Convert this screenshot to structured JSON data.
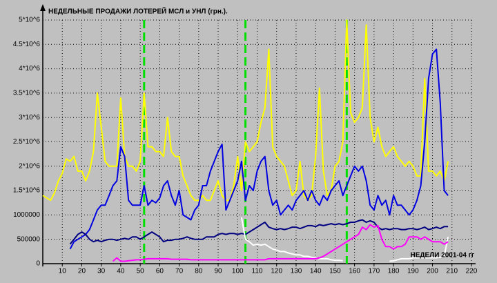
{
  "chart_data": {
    "type": "line",
    "title": "НЕДЕЛЬНЫЕ ПРОДАЖИ ЛОТЕРЕЙ МСЛ и УНЛ (грн.).",
    "xlabel": "НЕДЕЛИ 2001-04 гг",
    "x": [
      0,
      2,
      4,
      6,
      8,
      10,
      12,
      14,
      16,
      18,
      20,
      22,
      24,
      26,
      28,
      30,
      32,
      34,
      36,
      38,
      40,
      42,
      44,
      46,
      48,
      50,
      52,
      54,
      56,
      58,
      60,
      62,
      64,
      66,
      68,
      70,
      72,
      74,
      76,
      78,
      80,
      82,
      84,
      86,
      88,
      90,
      92,
      94,
      96,
      98,
      100,
      102,
      104,
      106,
      108,
      110,
      112,
      114,
      116,
      118,
      120,
      122,
      124,
      126,
      128,
      130,
      132,
      134,
      136,
      138,
      140,
      142,
      144,
      146,
      148,
      150,
      152,
      154,
      156,
      158,
      160,
      162,
      164,
      166,
      168,
      170,
      172,
      174,
      176,
      178,
      180,
      182,
      184,
      186,
      188,
      190,
      192,
      194,
      196,
      198,
      200,
      202,
      204,
      206,
      208
    ],
    "series": [
      {
        "color": "#ffff00",
        "values": [
          1400000,
          1350000,
          1300000,
          1450000,
          1700000,
          1850000,
          2150000,
          2100000,
          2200000,
          1900000,
          1900000,
          1700000,
          1900000,
          2300000,
          3500000,
          2800000,
          2100000,
          2000000,
          2000000,
          2000000,
          3400000,
          2200000,
          2000000,
          2000000,
          1900000,
          2100000,
          3500000,
          2400000,
          2400000,
          2300000,
          2300000,
          2200000,
          3000000,
          2300000,
          2200000,
          2200000,
          1800000,
          1600000,
          1400000,
          1300000,
          1300000,
          1400000,
          1300000,
          1300000,
          1500000,
          1700000,
          1400000,
          1300000,
          1300000,
          1600000,
          2200000,
          1500000,
          2500000,
          2300000,
          2400000,
          2500000,
          2900000,
          3200000,
          4400000,
          2400000,
          2200000,
          2100000,
          2000000,
          1700000,
          1400000,
          1500000,
          2100000,
          1400000,
          1300000,
          1400000,
          2200000,
          3600000,
          1900000,
          1400000,
          1500000,
          2000000,
          2100000,
          2500000,
          5000000,
          3100000,
          2900000,
          3000000,
          3200000,
          4900000,
          3000000,
          2500000,
          2800000,
          2400000,
          2200000,
          2300000,
          2400000,
          2200000,
          2100000,
          2000000,
          2100000,
          2000000,
          1800000,
          1800000,
          3800000,
          1900000,
          1900000,
          1800000,
          1900000,
          1700000,
          2100000
        ]
      },
      {
        "color": "#0000e0",
        "values": [
          null,
          null,
          null,
          null,
          null,
          null,
          null,
          300000,
          450000,
          500000,
          550000,
          600000,
          700000,
          900000,
          1100000,
          1200000,
          1200000,
          1400000,
          1600000,
          1700000,
          2400000,
          2200000,
          1300000,
          1200000,
          1200000,
          1200000,
          1600000,
          1200000,
          1300000,
          1250000,
          1350000,
          1600000,
          1700000,
          1400000,
          1200000,
          1500000,
          1000000,
          950000,
          900000,
          1100000,
          1200000,
          1600000,
          1600000,
          1900000,
          2100000,
          2300000,
          2450000,
          1100000,
          1300000,
          1500000,
          1700000,
          2100000,
          1300000,
          1600000,
          1500000,
          1900000,
          2100000,
          2200000,
          1500000,
          1200000,
          1300000,
          1000000,
          1100000,
          1200000,
          1100000,
          1300000,
          1400000,
          1500000,
          1300000,
          1500000,
          1300000,
          1200000,
          1400000,
          1300000,
          1500000,
          1600000,
          1700000,
          1400000,
          1600000,
          1800000,
          2000000,
          1900000,
          2000000,
          1700000,
          1200000,
          1100000,
          1400000,
          1200000,
          1300000,
          1000000,
          1400000,
          1200000,
          1200000,
          1100000,
          1000000,
          1100000,
          1300000,
          1600000,
          2500000,
          3800000,
          4300000,
          4400000,
          3300000,
          1500000,
          1400000
        ]
      },
      {
        "color": "#000080",
        "values": [
          null,
          null,
          null,
          null,
          null,
          null,
          null,
          400000,
          500000,
          600000,
          650000,
          600000,
          500000,
          450000,
          480000,
          450000,
          480000,
          500000,
          500000,
          480000,
          500000,
          520000,
          500000,
          550000,
          550000,
          500000,
          550000,
          600000,
          650000,
          600000,
          550000,
          450000,
          480000,
          480000,
          500000,
          500000,
          520000,
          550000,
          520000,
          500000,
          500000,
          500000,
          550000,
          550000,
          550000,
          600000,
          620000,
          600000,
          620000,
          620000,
          600000,
          620000,
          600000,
          650000,
          700000,
          750000,
          800000,
          850000,
          750000,
          720000,
          700000,
          720000,
          700000,
          720000,
          750000,
          750000,
          720000,
          750000,
          780000,
          780000,
          760000,
          800000,
          780000,
          800000,
          820000,
          800000,
          820000,
          800000,
          820000,
          850000,
          850000,
          880000,
          900000,
          850000,
          880000,
          850000,
          750000,
          700000,
          720000,
          700000,
          720000,
          720000,
          700000,
          700000,
          720000,
          720000,
          700000,
          720000,
          750000,
          700000,
          720000,
          750000,
          720000,
          760000,
          760000
        ]
      },
      {
        "color": "#ffffff",
        "values": [
          null,
          null,
          null,
          null,
          null,
          null,
          null,
          null,
          null,
          null,
          null,
          null,
          null,
          null,
          null,
          null,
          null,
          null,
          null,
          null,
          null,
          null,
          null,
          null,
          null,
          null,
          null,
          null,
          null,
          null,
          null,
          null,
          null,
          null,
          null,
          null,
          null,
          null,
          null,
          null,
          null,
          null,
          null,
          null,
          null,
          null,
          null,
          null,
          null,
          null,
          null,
          950000,
          500000,
          450000,
          380000,
          400000,
          380000,
          400000,
          350000,
          300000,
          280000,
          250000,
          250000,
          220000,
          200000,
          180000,
          180000,
          150000,
          150000,
          130000,
          120000,
          100000,
          100000,
          100000,
          80000,
          70000,
          70000,
          60000,
          null,
          null,
          null,
          null,
          null,
          null,
          null,
          null,
          null,
          null,
          null,
          50000,
          60000,
          80000,
          100000,
          100000,
          100000,
          120000,
          120000,
          120000,
          120000,
          120000,
          120000,
          120000,
          130000,
          150000,
          550000
        ]
      },
      {
        "color": "#ff00ff",
        "values": [
          null,
          null,
          null,
          null,
          null,
          null,
          null,
          null,
          null,
          null,
          null,
          null,
          null,
          null,
          null,
          null,
          null,
          null,
          50000,
          120000,
          50000,
          50000,
          60000,
          70000,
          80000,
          80000,
          90000,
          100000,
          100000,
          100000,
          100000,
          100000,
          100000,
          90000,
          90000,
          90000,
          90000,
          90000,
          80000,
          80000,
          80000,
          80000,
          80000,
          80000,
          80000,
          80000,
          80000,
          80000,
          80000,
          80000,
          80000,
          80000,
          80000,
          80000,
          80000,
          80000,
          80000,
          80000,
          100000,
          100000,
          100000,
          100000,
          100000,
          100000,
          100000,
          100000,
          100000,
          100000,
          100000,
          100000,
          100000,
          120000,
          150000,
          200000,
          250000,
          300000,
          350000,
          400000,
          450000,
          500000,
          550000,
          600000,
          750000,
          700000,
          800000,
          750000,
          780000,
          500000,
          350000,
          350000,
          300000,
          350000,
          350000,
          400000,
          550000,
          550000,
          550000,
          500000,
          550000,
          500000,
          450000,
          450000,
          450000,
          400000,
          450000
        ]
      }
    ],
    "reference_lines": {
      "x": [
        52,
        104,
        156
      ],
      "color": "#00e000"
    },
    "xlim": [
      0,
      220
    ],
    "ylim": [
      0,
      5000000
    ],
    "xticks": [
      10,
      20,
      30,
      40,
      50,
      60,
      70,
      80,
      90,
      100,
      110,
      120,
      130,
      140,
      150,
      160,
      170,
      180,
      190,
      200,
      210,
      220
    ],
    "yticks": [
      0,
      500000,
      1000000,
      {
        "value": 1500000,
        "label": "1.5*10^6"
      },
      {
        "value": 2000000,
        "label": "2*10^6"
      },
      {
        "value": 2500000,
        "label": "2.5*10^6"
      },
      {
        "value": 3000000,
        "label": "3*10^6"
      },
      {
        "value": 3500000,
        "label": "3.5*10^6"
      },
      {
        "value": 4000000,
        "label": "4*10^6"
      },
      {
        "value": 4500000,
        "label": "4.5*10^6"
      },
      {
        "value": 5000000,
        "label": "5*10^6"
      }
    ],
    "grid": true
  }
}
